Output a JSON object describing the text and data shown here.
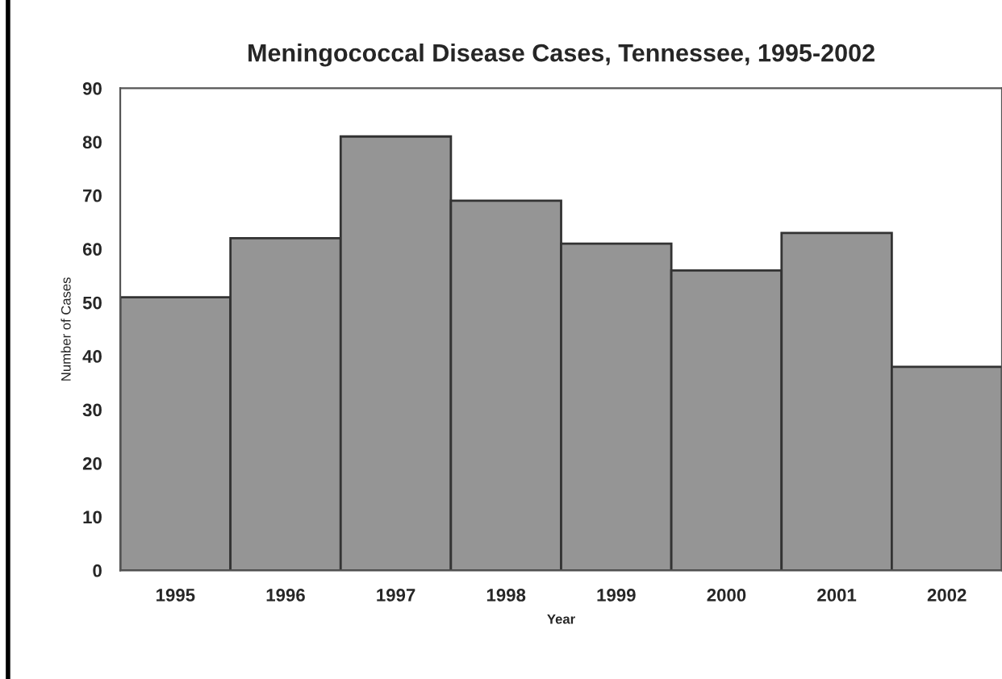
{
  "chart_data": {
    "type": "bar",
    "title": "Meningococcal Disease Cases, Tennessee, 1995-2002",
    "xlabel": "Year",
    "ylabel": "Number of Cases",
    "categories": [
      "1995",
      "1996",
      "1997",
      "1998",
      "1999",
      "2000",
      "2001",
      "2002"
    ],
    "values": [
      51,
      62,
      81,
      69,
      61,
      56,
      63,
      38
    ],
    "color": "#959595",
    "ylim": [
      0,
      90
    ],
    "yticks": [
      0,
      10,
      20,
      30,
      40,
      50,
      60,
      70,
      80,
      90
    ],
    "grid": false
  }
}
